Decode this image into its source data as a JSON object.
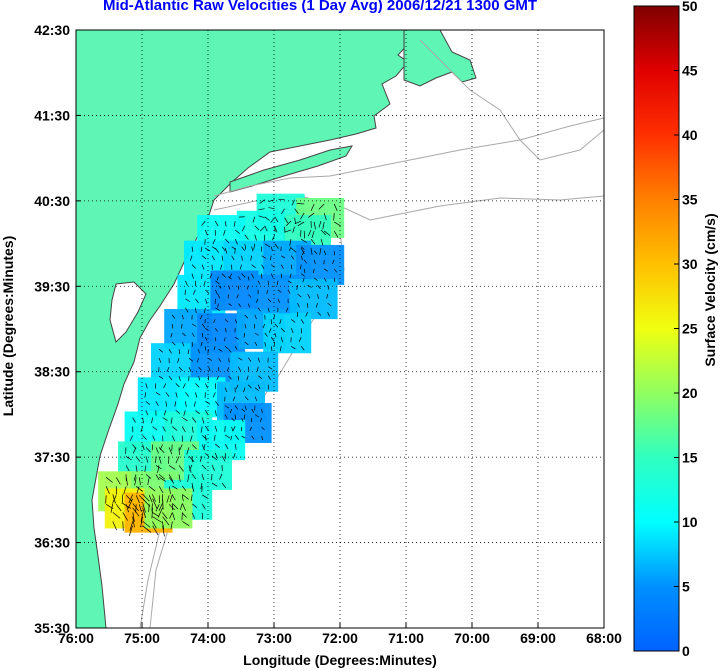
{
  "chart_data": {
    "type": "heatmap",
    "title": "Mid-Atlantic Raw Velocities (1 Day Avg) 2006/12/21 1300 GMT",
    "xlabel": "Longitude (Degrees:Minutes)",
    "ylabel": "Latitude (Degrees:Minutes)",
    "colorbar_label": "Surface Velocity (cm/s)",
    "xlim": [
      -76,
      -68
    ],
    "ylim": [
      35.5,
      42.5
    ],
    "clim": [
      0,
      50
    ],
    "x_ticks": [
      {
        "v": -76,
        "label": "76:00"
      },
      {
        "v": -75,
        "label": "75:00"
      },
      {
        "v": -74,
        "label": "74:00"
      },
      {
        "v": -73,
        "label": "73:00"
      },
      {
        "v": -72,
        "label": "72:00"
      },
      {
        "v": -71,
        "label": "71:00"
      },
      {
        "v": -70,
        "label": "70:00"
      },
      {
        "v": -69,
        "label": "69:00"
      },
      {
        "v": -68,
        "label": "68:00"
      }
    ],
    "y_ticks": [
      {
        "v": 35.5,
        "label": "35:30"
      },
      {
        "v": 36.5,
        "label": "36:30"
      },
      {
        "v": 37.5,
        "label": "37:30"
      },
      {
        "v": 38.5,
        "label": "38:30"
      },
      {
        "v": 39.5,
        "label": "39:30"
      },
      {
        "v": 40.5,
        "label": "40:30"
      },
      {
        "v": 41.5,
        "label": "41:30"
      },
      {
        "v": 42.5,
        "label": "42:30"
      }
    ],
    "cbar_ticks": [
      0,
      5,
      10,
      15,
      20,
      25,
      30,
      35,
      40,
      45,
      50
    ],
    "grid": true,
    "colors": {
      "land": "#5ff5b4",
      "coast": "#444444",
      "bathymetry": "#a8a8a8",
      "title": "#0000ff"
    },
    "cells": [
      {
        "lon": -72.9,
        "lat": 40.35,
        "speed": 13
      },
      {
        "lon": -72.3,
        "lat": 40.3,
        "speed": 18
      },
      {
        "lon": -72.5,
        "lat": 40.1,
        "speed": 15
      },
      {
        "lon": -73.2,
        "lat": 40.15,
        "speed": 12
      },
      {
        "lon": -73.8,
        "lat": 40.1,
        "speed": 11
      },
      {
        "lon": -74.0,
        "lat": 39.8,
        "speed": 9
      },
      {
        "lon": -73.4,
        "lat": 39.8,
        "speed": 8
      },
      {
        "lon": -72.8,
        "lat": 39.8,
        "speed": 6
      },
      {
        "lon": -72.3,
        "lat": 39.75,
        "speed": 5
      },
      {
        "lon": -74.1,
        "lat": 39.4,
        "speed": 9
      },
      {
        "lon": -73.6,
        "lat": 39.45,
        "speed": 4
      },
      {
        "lon": -73.0,
        "lat": 39.4,
        "speed": 5
      },
      {
        "lon": -72.4,
        "lat": 39.35,
        "speed": 7
      },
      {
        "lon": -74.3,
        "lat": 39.0,
        "speed": 6
      },
      {
        "lon": -73.8,
        "lat": 38.95,
        "speed": 4
      },
      {
        "lon": -73.2,
        "lat": 39.0,
        "speed": 6
      },
      {
        "lon": -72.8,
        "lat": 38.95,
        "speed": 8
      },
      {
        "lon": -74.5,
        "lat": 38.6,
        "speed": 8
      },
      {
        "lon": -73.9,
        "lat": 38.6,
        "speed": 5
      },
      {
        "lon": -73.3,
        "lat": 38.5,
        "speed": 7
      },
      {
        "lon": -74.7,
        "lat": 38.2,
        "speed": 9
      },
      {
        "lon": -74.1,
        "lat": 38.2,
        "speed": 10
      },
      {
        "lon": -73.5,
        "lat": 38.15,
        "speed": 7
      },
      {
        "lon": -73.4,
        "lat": 37.9,
        "speed": 5
      },
      {
        "lon": -74.9,
        "lat": 37.8,
        "speed": 11
      },
      {
        "lon": -74.3,
        "lat": 37.8,
        "speed": 13
      },
      {
        "lon": -73.8,
        "lat": 37.7,
        "speed": 11
      },
      {
        "lon": -75.0,
        "lat": 37.45,
        "speed": 14
      },
      {
        "lon": -74.5,
        "lat": 37.45,
        "speed": 18
      },
      {
        "lon": -74.0,
        "lat": 37.35,
        "speed": 13
      },
      {
        "lon": -75.3,
        "lat": 37.1,
        "speed": 21
      },
      {
        "lon": -74.8,
        "lat": 37.1,
        "speed": 19
      },
      {
        "lon": -74.3,
        "lat": 37.0,
        "speed": 13
      },
      {
        "lon": -75.2,
        "lat": 36.9,
        "speed": 26
      },
      {
        "lon": -74.9,
        "lat": 36.85,
        "speed": 31
      },
      {
        "lon": -74.6,
        "lat": 36.9,
        "speed": 20
      }
    ]
  }
}
